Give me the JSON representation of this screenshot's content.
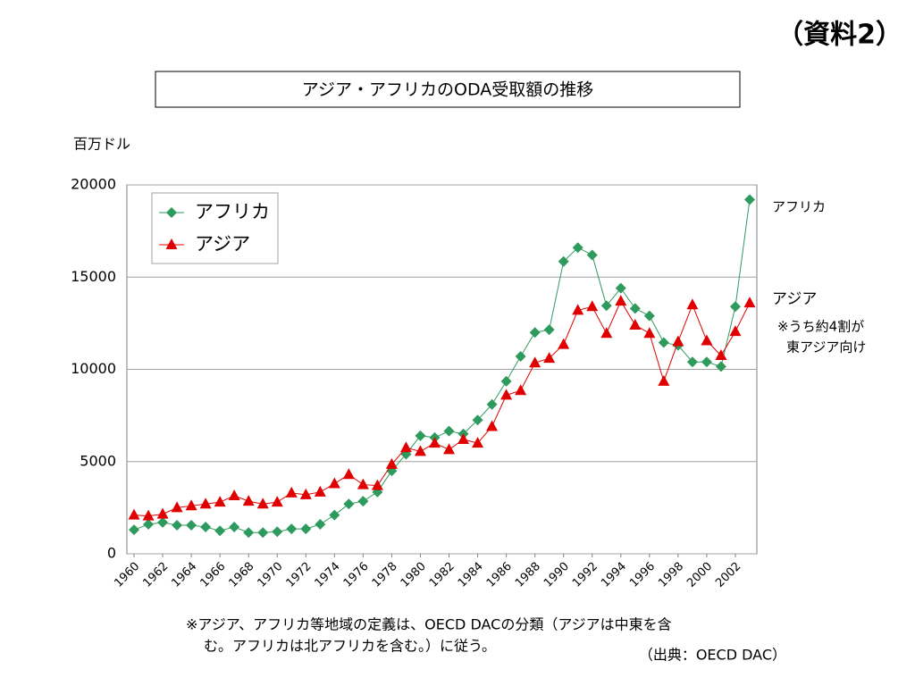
{
  "chart_data": {
    "type": "line",
    "corner_label": "（資料2）",
    "title": "アジア・アフリカのODA受取額の推移",
    "y_axis_label": "百万ドル",
    "x": [
      1960,
      1961,
      1962,
      1963,
      1964,
      1965,
      1966,
      1967,
      1968,
      1969,
      1970,
      1971,
      1972,
      1973,
      1974,
      1975,
      1976,
      1977,
      1978,
      1979,
      1980,
      1981,
      1982,
      1983,
      1984,
      1985,
      1986,
      1987,
      1988,
      1989,
      1990,
      1991,
      1992,
      1993,
      1994,
      1995,
      1996,
      1997,
      1998,
      1999,
      2000,
      2001,
      2002,
      2003
    ],
    "series": [
      {
        "name": "アフリカ",
        "color": "#2e9a5e",
        "marker": "diamond",
        "values": [
          1300,
          1600,
          1700,
          1550,
          1550,
          1450,
          1250,
          1450,
          1150,
          1150,
          1200,
          1350,
          1350,
          1600,
          2100,
          2700,
          2850,
          3350,
          4500,
          5400,
          6400,
          6300,
          6650,
          6500,
          7250,
          8100,
          9350,
          10700,
          12000,
          12150,
          15850,
          16600,
          16200,
          13450,
          14400,
          13300,
          12900,
          11450,
          11300,
          10400,
          10400,
          10150,
          13400,
          19200
        ]
      },
      {
        "name": "アジア",
        "color": "#e00000",
        "marker": "triangle",
        "values": [
          2100,
          2050,
          2150,
          2500,
          2600,
          2700,
          2800,
          3150,
          2850,
          2700,
          2800,
          3300,
          3200,
          3350,
          3800,
          4300,
          3750,
          3700,
          4850,
          5750,
          5550,
          6000,
          5650,
          6200,
          6000,
          6900,
          8600,
          8850,
          10350,
          10600,
          11350,
          13200,
          13400,
          11950,
          13700,
          12400,
          11950,
          9350,
          11500,
          13500,
          11550,
          10750,
          12050,
          13600
        ]
      }
    ],
    "xlim": [
      1959.5,
      2003.5
    ],
    "xticks": [
      1960,
      1962,
      1964,
      1966,
      1968,
      1970,
      1972,
      1974,
      1976,
      1978,
      1980,
      1982,
      1984,
      1986,
      1988,
      1990,
      1992,
      1994,
      1996,
      1998,
      2000,
      2002
    ],
    "ylim": [
      0,
      20000
    ],
    "yticks": [
      0,
      5000,
      10000,
      15000,
      20000
    ],
    "grid": true,
    "legend": "upper left",
    "annotations": [
      "アフリカ",
      "アジア",
      "※うち約4割が",
      "東アジア向け"
    ],
    "footnote": [
      "※アジア、アフリカ等地域の定義は、OECD DACの分類（アジアは中東を含",
      "む。アフリカは北アフリカを含む。）に従う。"
    ],
    "source": "（出典：OECD DAC）"
  }
}
